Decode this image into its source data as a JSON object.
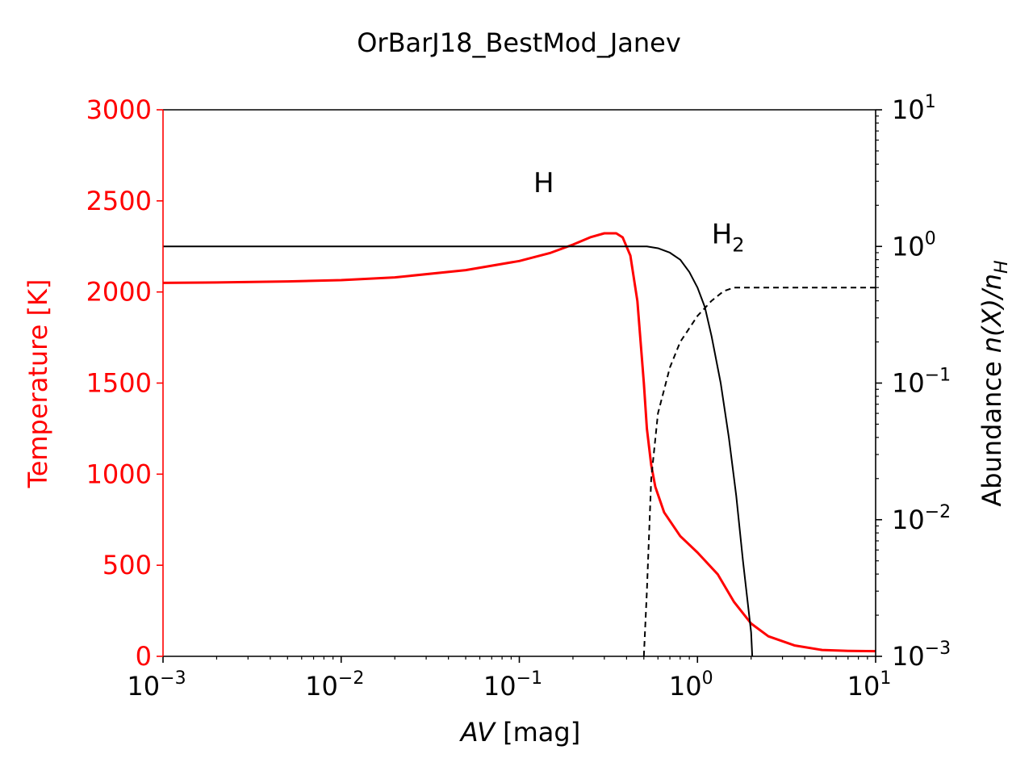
{
  "chart_data": {
    "type": "line",
    "title": "OrBarJ18_BestMod_Janev",
    "xlabel": "AV [mag]",
    "xlabel_italic_part": "AV",
    "xlabel_unit": "[mag]",
    "xscale": "log",
    "xlim": [
      0.001,
      10
    ],
    "x_ticks": [
      {
        "value": 0.001,
        "base": "10",
        "exp": "−3"
      },
      {
        "value": 0.01,
        "base": "10",
        "exp": "−2"
      },
      {
        "value": 0.1,
        "base": "10",
        "exp": "−1"
      },
      {
        "value": 1,
        "base": "10",
        "exp": "0"
      },
      {
        "value": 10,
        "base": "10",
        "exp": "1"
      }
    ],
    "left_axis": {
      "label": "Temperature [K]",
      "color": "#ff0000",
      "ylim": [
        0,
        3000
      ],
      "ticks": [
        "0",
        "500",
        "1000",
        "1500",
        "2000",
        "2500",
        "3000"
      ]
    },
    "right_axis": {
      "label_text": "Abundance ",
      "label_math": "n(X)/n",
      "label_sub": "H",
      "color": "#000000",
      "yscale": "log",
      "ylim": [
        0.001,
        10
      ],
      "ticks": [
        {
          "value": 0.001,
          "base": "10",
          "exp": "−3"
        },
        {
          "value": 0.01,
          "base": "10",
          "exp": "−2"
        },
        {
          "value": 0.1,
          "base": "10",
          "exp": "−1"
        },
        {
          "value": 1,
          "base": "10",
          "exp": "0"
        },
        {
          "value": 10,
          "base": "10",
          "exp": "1"
        }
      ]
    },
    "annotations": [
      {
        "text": "H",
        "sub": "",
        "x": 0.12,
        "y_right": 2.5
      },
      {
        "text": "H",
        "sub": "2",
        "x": 1.2,
        "y_right": 1.05
      }
    ],
    "series": [
      {
        "axis": "left",
        "color": "#ff0000",
        "style": "solid",
        "width": 3,
        "x": [
          0.001,
          0.002,
          0.005,
          0.01,
          0.02,
          0.05,
          0.1,
          0.15,
          0.2,
          0.25,
          0.3,
          0.35,
          0.38,
          0.42,
          0.46,
          0.5,
          0.52,
          0.55,
          0.58,
          0.65,
          0.8,
          1.0,
          1.3,
          1.6,
          2.0,
          2.5,
          3.5,
          5.0,
          7.0,
          10.0
        ],
        "y": [
          2050,
          2052,
          2058,
          2065,
          2080,
          2120,
          2170,
          2215,
          2260,
          2300,
          2322,
          2322,
          2300,
          2200,
          1950,
          1500,
          1250,
          1050,
          930,
          790,
          660,
          570,
          450,
          300,
          180,
          110,
          60,
          35,
          30,
          28
        ]
      },
      {
        "axis": "right",
        "color": "#000000",
        "style": "solid",
        "width": 2,
        "x": [
          0.001,
          0.01,
          0.1,
          0.3,
          0.52,
          0.6,
          0.7,
          0.8,
          0.9,
          1.0,
          1.1,
          1.2,
          1.35,
          1.5,
          1.65,
          1.8,
          2.0,
          2.03
        ],
        "y": [
          1.0,
          1.0,
          1.0,
          1.0,
          1.0,
          0.97,
          0.9,
          0.8,
          0.65,
          0.5,
          0.36,
          0.22,
          0.1,
          0.04,
          0.015,
          0.005,
          0.0015,
          0.001
        ]
      },
      {
        "axis": "right",
        "color": "#000000",
        "style": "dashed",
        "width": 2,
        "x": [
          0.5,
          0.52,
          0.55,
          0.6,
          0.7,
          0.8,
          1.0,
          1.2,
          1.4,
          1.6,
          2.0,
          3.0,
          5.0,
          10.0
        ],
        "y": [
          0.001,
          0.003,
          0.02,
          0.06,
          0.13,
          0.2,
          0.31,
          0.4,
          0.47,
          0.5,
          0.5,
          0.5,
          0.5,
          0.5
        ]
      }
    ]
  }
}
